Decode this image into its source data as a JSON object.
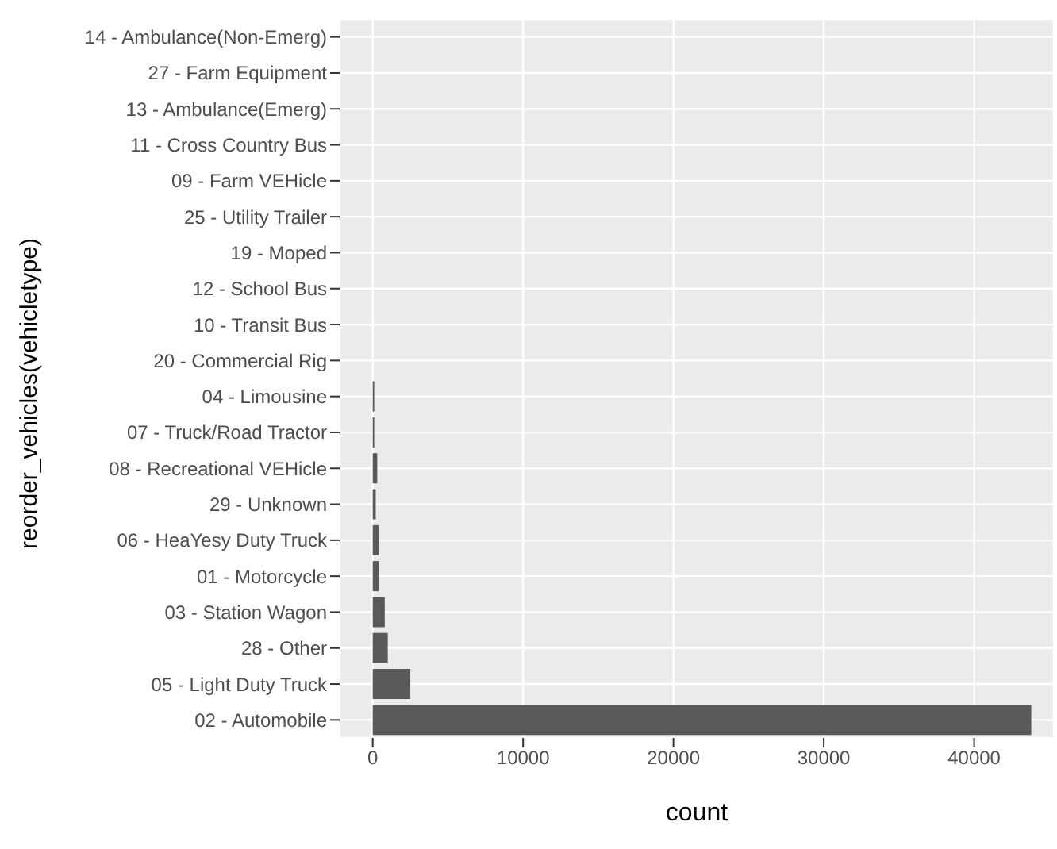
{
  "chart_data": {
    "type": "bar",
    "orientation": "horizontal",
    "xlabel": "count",
    "ylabel": "reorder_vehicles(vehicletype)",
    "categories": [
      "14 - Ambulance(Non-Emerg)",
      "27 - Farm Equipment",
      "13 - Ambulance(Emerg)",
      "11 - Cross Country Bus",
      "09 - Farm VEHicle",
      "25 - Utility Trailer",
      "19 - Moped",
      "12 - School Bus",
      "10 - Transit Bus",
      "20 - Commercial Rig",
      "04 - Limousine",
      "07 - Truck/Road Tractor",
      "08 - Recreational VEHicle",
      "29 - Unknown",
      "06 - HeaYesy Duty Truck",
      "01 - Motorcycle",
      "03 - Station Wagon",
      "28 - Other",
      "05 - Light Duty Truck",
      "02 - Automobile"
    ],
    "values": [
      0,
      0,
      0,
      0,
      0,
      0,
      0,
      0,
      0,
      0,
      100,
      100,
      300,
      200,
      400,
      400,
      800,
      1000,
      2500,
      43800
    ],
    "color": "#595959",
    "xlim": [
      -2200,
      45300
    ],
    "xticks": [
      0,
      10000,
      20000,
      30000,
      40000
    ],
    "grid": true
  }
}
